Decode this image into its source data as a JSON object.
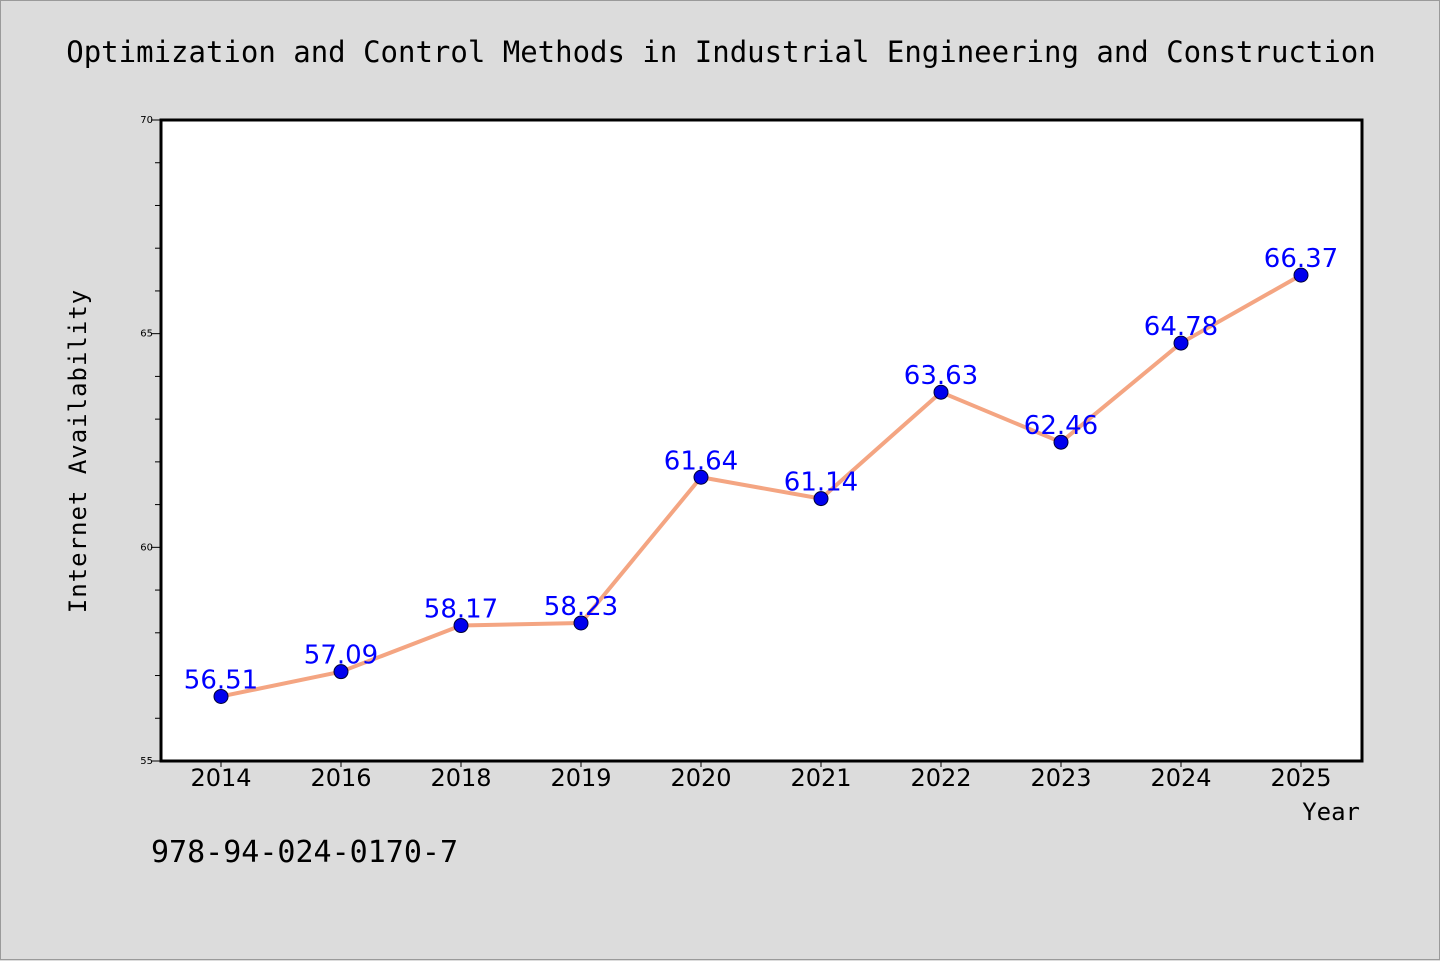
{
  "title": "Optimization and Control Methods in Industrial Engineering and Construction",
  "footer_text": "978-94-024-0170-7",
  "chart_data": {
    "type": "line",
    "title": "Optimization and Control Methods in Industrial Engineering and Construction",
    "xlabel": "Year",
    "ylabel": "Internet Availability",
    "categories": [
      "2014",
      "2016",
      "2018",
      "2019",
      "2020",
      "2021",
      "2022",
      "2023",
      "2024",
      "2025"
    ],
    "series": [
      {
        "values": [
          56.51,
          57.09,
          58.17,
          58.23,
          61.64,
          61.14,
          63.63,
          62.46,
          64.78,
          66.37
        ],
        "labels": [
          "56.51",
          "57.09",
          "58.17",
          "58.23",
          "61.64",
          "61.14",
          "63.63",
          "62.46",
          "64.78",
          "66.37"
        ]
      }
    ],
    "ylim": [
      55,
      70
    ],
    "yticks": [
      "55",
      "60",
      "65",
      "70"
    ],
    "grid": false,
    "legend": "none",
    "colors": {
      "line": "#f4a582",
      "marker": "#0000ee",
      "data_label": "#0000ff",
      "background": "#dcdcdc",
      "plot_background": "#ffffff"
    }
  }
}
